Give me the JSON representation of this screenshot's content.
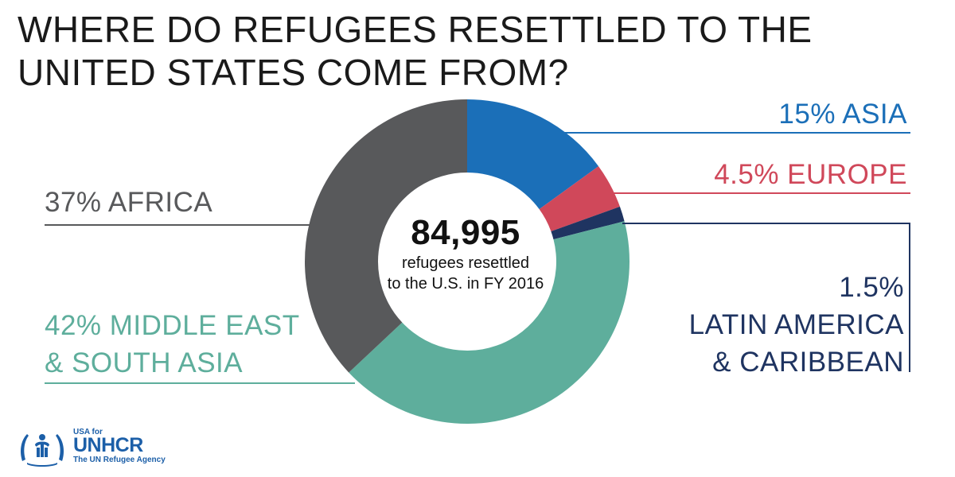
{
  "title_lines": [
    "WHERE DO REFUGEES RESETTLED TO THE",
    "UNITED STATES COME FROM?"
  ],
  "center": {
    "total": "84,995",
    "line1": "refugees resettled",
    "line2": "to the U.S. in FY 2016"
  },
  "labels": {
    "asia": "15% ASIA",
    "europe": "4.5% EUROPE",
    "africa": "37% AFRICA",
    "mideast_1": "42% MIDDLE EAST",
    "mideast_2": "& SOUTH ASIA",
    "latam_1": "1.5%",
    "latam_2": "LATIN AMERICA",
    "latam_3": "& CARIBBEAN"
  },
  "logo": {
    "top": "USA for",
    "main": "UNHCR",
    "sub": "The UN Refugee Agency"
  },
  "chart_data": {
    "type": "pie",
    "style": "donut",
    "start": "12 o'clock, clockwise",
    "slices": [
      {
        "label": "ASIA",
        "value": 15,
        "color": "#1b6fb8"
      },
      {
        "label": "EUROPE",
        "value": 4.5,
        "color": "#d0485a"
      },
      {
        "label": "LATIN AMERICA & CARIBBEAN",
        "value": 1.5,
        "color": "#1f3461"
      },
      {
        "label": "MIDDLE EAST & SOUTH ASIA",
        "value": 42,
        "color": "#5eae9c"
      },
      {
        "label": "AFRICA",
        "value": 37,
        "color": "#58595b"
      }
    ]
  },
  "colors": {
    "title": "#1a1a1a",
    "asia": "#1b6fb8",
    "europe": "#d0485a",
    "latam": "#1f3461",
    "mideast": "#5eae9c",
    "africa": "#58595b",
    "brand": "#1c5fa8"
  }
}
